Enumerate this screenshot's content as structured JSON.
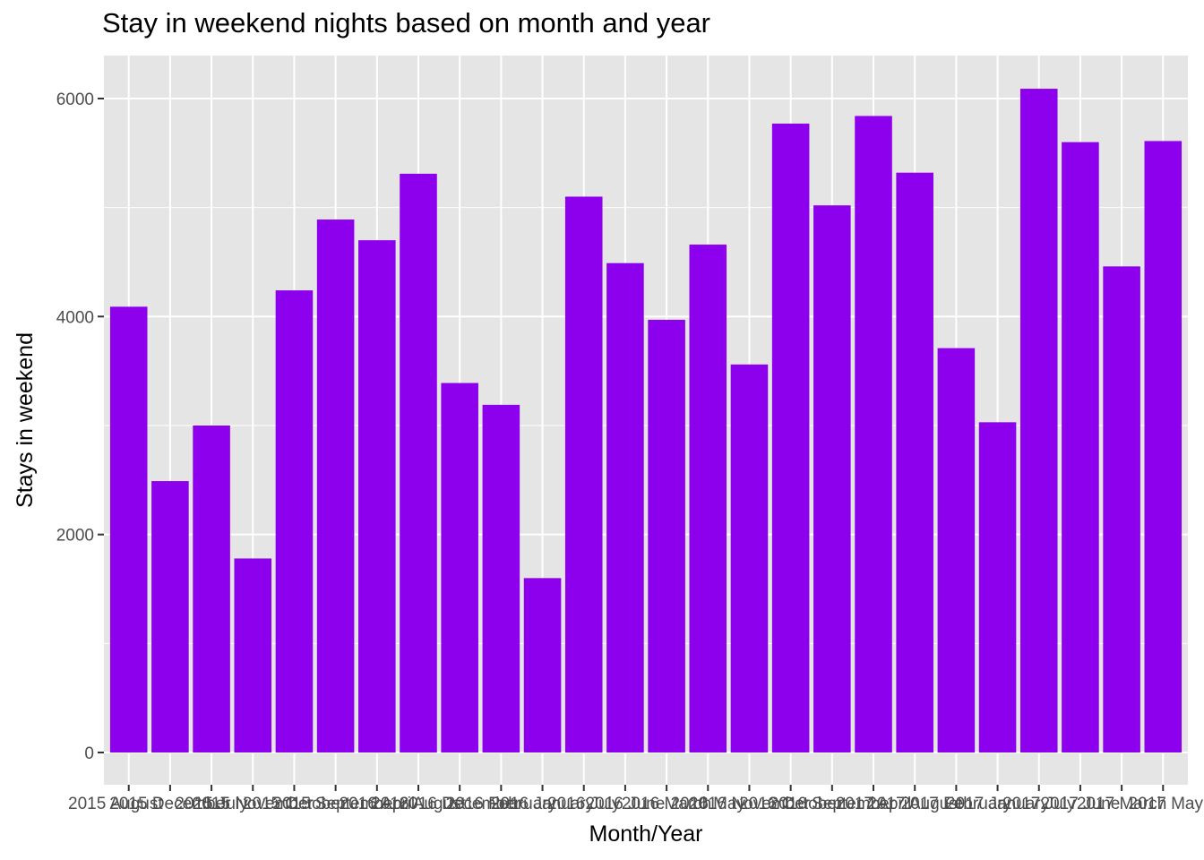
{
  "chart_data": {
    "type": "bar",
    "title": "Stay in weekend nights based on month and year",
    "xlabel": "Month/Year",
    "ylabel": "Stays in weekend",
    "categories": [
      "2015 August",
      "2015 December",
      "2015 July",
      "2015 November",
      "2015 October",
      "2015 September",
      "2016 April",
      "2016 August",
      "2016 December",
      "2016 February",
      "2016 January",
      "2016 July",
      "2016 June",
      "2016 March",
      "2016 May",
      "2016 November",
      "2016 October",
      "2016 September",
      "2017 April",
      "2017 August",
      "2017 February",
      "2017 January",
      "2017 July",
      "2017 June",
      "2017 March",
      "2017 May"
    ],
    "values": [
      4090,
      2490,
      3000,
      1780,
      4240,
      4890,
      4700,
      5310,
      3390,
      3190,
      1600,
      5100,
      4490,
      3970,
      4660,
      3560,
      5770,
      5020,
      5840,
      5320,
      3710,
      3030,
      6090,
      5600,
      4460,
      5610
    ],
    "ylim": [
      0,
      6380
    ],
    "yticks": [
      0,
      2000,
      4000,
      6000
    ],
    "bar_color": "#8D00EE",
    "panel_color": "#E5E5E5",
    "grid_color": "#FFFFFF",
    "grid": true,
    "legend": "none"
  }
}
